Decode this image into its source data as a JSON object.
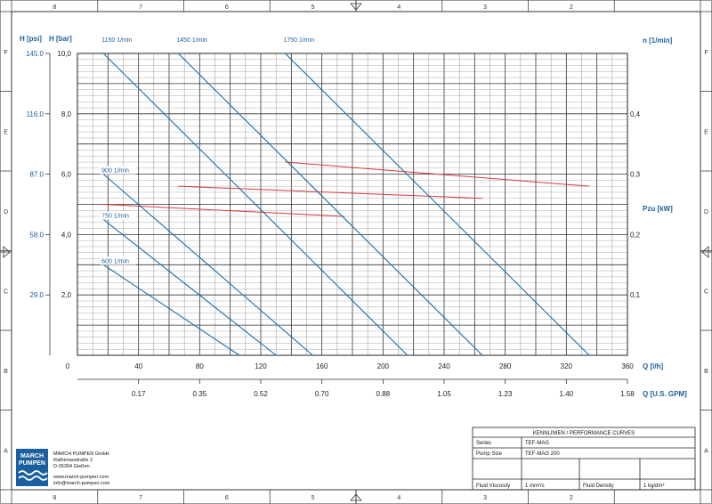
{
  "chart_data": {
    "type": "line",
    "x_axis": {
      "label": "Q [l/h]",
      "range": [
        0,
        360
      ],
      "ticks": [
        "0",
        "40",
        "80",
        "120",
        "160",
        "200",
        "240",
        "280",
        "320",
        "360"
      ]
    },
    "x2_axis": {
      "label": "Q [U.S. GPM]",
      "ticks": [
        {
          "q": 40,
          "label": "0.17"
        },
        {
          "q": 80,
          "label": "0.35"
        },
        {
          "q": 120,
          "label": "0.52"
        },
        {
          "q": 160,
          "label": "0.70"
        },
        {
          "q": 200,
          "label": "0.88"
        },
        {
          "q": 240,
          "label": "1.05"
        },
        {
          "q": 280,
          "label": "1.23"
        },
        {
          "q": 320,
          "label": "1.40"
        },
        {
          "q": 360,
          "label": "1.58"
        }
      ]
    },
    "y_axis": {
      "label": "H [bar]",
      "range": [
        0,
        10
      ],
      "ticks": [
        "2,0",
        "4,0",
        "6,0",
        "8,0",
        "10,0"
      ]
    },
    "y_psi_axis": {
      "label": "H [psi]",
      "ticks": [
        {
          "h": 2,
          "label": "29.0"
        },
        {
          "h": 4,
          "label": "58.0"
        },
        {
          "h": 6,
          "label": "87.0"
        },
        {
          "h": 8,
          "label": "116.0"
        },
        {
          "h": 10,
          "label": "145.0"
        }
      ]
    },
    "y2_axis": {
      "label": "Pzu [kW]",
      "range": [
        0,
        0.5
      ],
      "ticks": [
        {
          "p": 0.1,
          "label": "0,1"
        },
        {
          "p": 0.2,
          "label": "0,2"
        },
        {
          "p": 0.3,
          "label": "0,3"
        },
        {
          "p": 0.4,
          "label": "0,4"
        }
      ]
    },
    "speed_label": "n [1/min]",
    "grid": true,
    "head_curves": [
      {
        "name": "600 1/min",
        "points": [
          [
            17,
            3.0
          ],
          [
            106,
            0
          ]
        ]
      },
      {
        "name": "750 1/min",
        "points": [
          [
            17,
            4.5
          ],
          [
            130,
            0
          ]
        ]
      },
      {
        "name": "900 1/min",
        "points": [
          [
            17,
            6.0
          ],
          [
            154,
            0
          ]
        ]
      },
      {
        "name": "1150 1/min",
        "points": [
          [
            17,
            10.0
          ],
          [
            216,
            0
          ]
        ]
      },
      {
        "name": "1450 1/min",
        "points": [
          [
            66,
            10.0
          ],
          [
            265,
            0
          ]
        ]
      },
      {
        "name": "1750 1/min",
        "points": [
          [
            136,
            10.0
          ],
          [
            335,
            0
          ]
        ]
      }
    ],
    "power_curves": [
      {
        "speed": "1750 1/min",
        "points": [
          [
            136,
            0.32
          ],
          [
            335,
            0.28
          ]
        ]
      },
      {
        "speed": "1450 1/min",
        "points": [
          [
            66,
            0.28
          ],
          [
            265,
            0.26
          ]
        ]
      },
      {
        "speed": "1150 1/min",
        "points": [
          [
            17,
            0.25
          ],
          [
            175,
            0.23
          ]
        ]
      }
    ]
  },
  "frame": {
    "top_numbers": [
      "8",
      "7",
      "6",
      "5",
      "4",
      "3",
      "2"
    ],
    "bottom_numbers": [
      "8",
      "7",
      "6",
      "5",
      "4",
      "3",
      "2"
    ],
    "side_letters": [
      "F",
      "E",
      "D",
      "C",
      "B",
      "A"
    ]
  },
  "title_block": {
    "heading": "KENNLINIEN / PERFORMANCE CURVES",
    "series_label": "Series",
    "series_value": "TEF-MAG",
    "pump_size_label": "Pump Size",
    "pump_size_value": "TEF-MAG 200",
    "viscosity_label": "Fluid Viscosity",
    "viscosity_value": "1 mm²/s",
    "density_label": "Fluid Density",
    "density_value": "1 kg/dm³"
  },
  "company": {
    "logo_line1": "MARCH",
    "logo_line2": "PUMPEN",
    "name": "MARCH PUMPEN GmbH",
    "street": "Rathenaustraße 2",
    "city": "D-35394 Gießen",
    "web": "www.march-pumpen.com",
    "email": "info@march-pumpen.com"
  }
}
